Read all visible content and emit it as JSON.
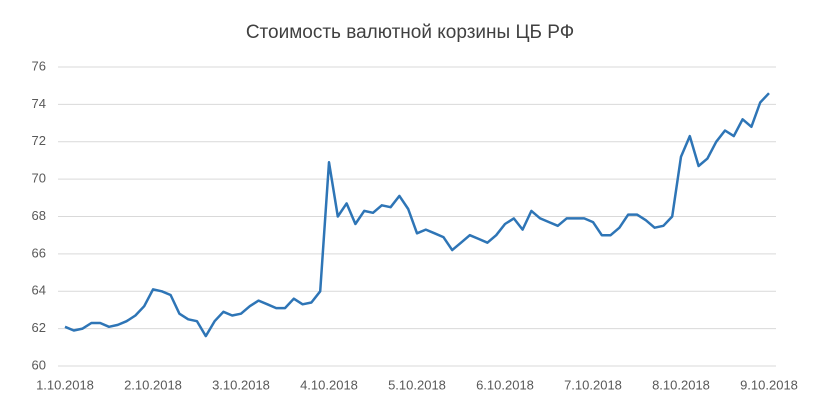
{
  "chart_data": {
    "type": "line",
    "title": "Стоимость валютной корзины ЦБ РФ",
    "categories": [
      "1.10.2018",
      null,
      null,
      null,
      null,
      null,
      null,
      null,
      null,
      null,
      "2.10.2018",
      null,
      null,
      null,
      null,
      null,
      null,
      null,
      null,
      null,
      "3.10.2018",
      null,
      null,
      null,
      null,
      null,
      null,
      null,
      null,
      null,
      "4.10.2018",
      null,
      null,
      null,
      null,
      null,
      null,
      null,
      null,
      null,
      "5.10.2018",
      null,
      null,
      null,
      null,
      null,
      null,
      null,
      null,
      null,
      "6.10.2018",
      null,
      null,
      null,
      null,
      null,
      null,
      null,
      null,
      null,
      "7.10.2018",
      null,
      null,
      null,
      null,
      null,
      null,
      null,
      null,
      null,
      "8.10.2018",
      null,
      null,
      null,
      null,
      null,
      null,
      null,
      null,
      null,
      "9.10.2018"
    ],
    "series": [
      {
        "color": "#2e75b6",
        "values": [
          62.1,
          61.9,
          62.0,
          62.3,
          62.3,
          62.1,
          62.2,
          62.4,
          62.7,
          63.2,
          64.1,
          64.0,
          63.8,
          62.8,
          62.5,
          62.4,
          61.6,
          62.4,
          62.9,
          62.7,
          62.8,
          63.2,
          63.5,
          63.3,
          63.1,
          63.1,
          63.6,
          63.3,
          63.4,
          64.0,
          70.9,
          68.0,
          68.7,
          67.6,
          68.3,
          68.2,
          68.6,
          68.5,
          69.1,
          68.4,
          67.1,
          67.3,
          67.1,
          66.9,
          66.2,
          66.6,
          67.0,
          66.8,
          66.6,
          67.0,
          67.6,
          67.9,
          67.3,
          68.3,
          67.9,
          67.7,
          67.5,
          67.9,
          67.9,
          67.9,
          67.7,
          67.0,
          67.0,
          67.4,
          68.1,
          68.1,
          67.8,
          67.4,
          67.5,
          68.0,
          71.2,
          72.3,
          70.7,
          71.1,
          72.0,
          72.6,
          72.3,
          73.2,
          72.8,
          74.1,
          74.6
        ]
      }
    ],
    "ylim": [
      60,
      76
    ],
    "yticks": [
      60,
      62,
      64,
      66,
      68,
      70,
      72,
      74,
      76
    ],
    "grid": true
  }
}
